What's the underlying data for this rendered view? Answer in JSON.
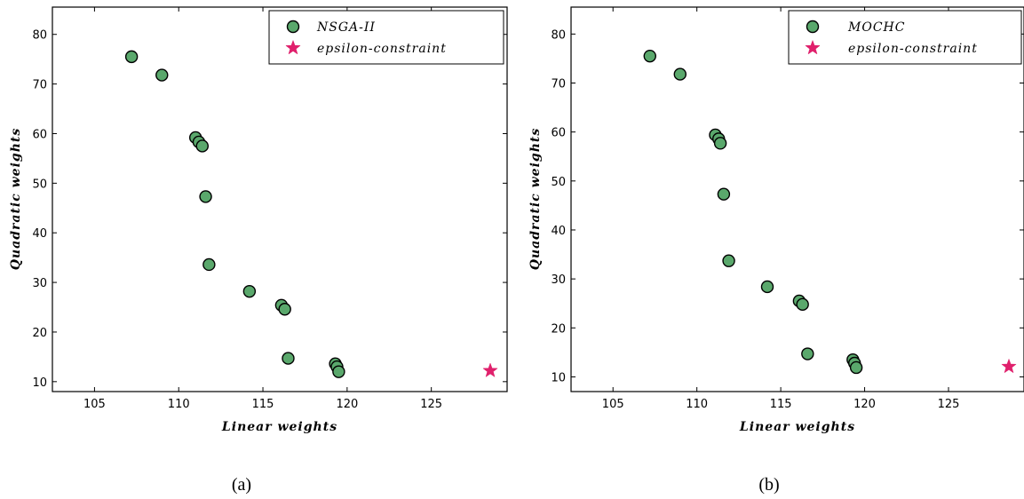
{
  "chart_data": [
    {
      "type": "scatter",
      "xlabel": "Linear weights",
      "ylabel": "Quadratic weights",
      "xlim": [
        102.5,
        129.5
      ],
      "ylim": [
        8,
        85.5
      ],
      "xticks": [
        105,
        110,
        115,
        120,
        125
      ],
      "yticks": [
        10,
        20,
        30,
        40,
        50,
        60,
        70,
        80
      ],
      "legend_position": "top-right",
      "caption": "(a)",
      "series": [
        {
          "name": "NSGA-II",
          "marker": "circle",
          "color": "#5aa86c",
          "x": [
            107.2,
            109.0,
            111.0,
            111.2,
            111.4,
            111.6,
            111.8,
            114.2,
            116.1,
            116.3,
            116.5,
            119.3,
            119.4,
            119.5
          ],
          "y": [
            75.5,
            71.8,
            59.2,
            58.3,
            57.5,
            47.3,
            33.6,
            28.2,
            25.4,
            24.6,
            14.7,
            13.6,
            13.0,
            12.0
          ]
        },
        {
          "name": "epsilon-constraint",
          "marker": "star",
          "color": "#e0206c",
          "x": [
            128.5
          ],
          "y": [
            12.2
          ]
        }
      ]
    },
    {
      "type": "scatter",
      "xlabel": "Linear weights",
      "ylabel": "Quadratic weights",
      "xlim": [
        102.5,
        129.5
      ],
      "ylim": [
        7,
        85.5
      ],
      "xticks": [
        105,
        110,
        115,
        120,
        125
      ],
      "yticks": [
        10,
        20,
        30,
        40,
        50,
        60,
        70,
        80
      ],
      "legend_position": "top-right",
      "caption": "(b)",
      "series": [
        {
          "name": "MOCHC",
          "marker": "circle",
          "color": "#5aa86c",
          "x": [
            107.2,
            109.0,
            111.1,
            111.3,
            111.4,
            111.6,
            111.9,
            114.2,
            116.1,
            116.3,
            116.6,
            119.3,
            119.4,
            119.5
          ],
          "y": [
            75.5,
            71.8,
            59.4,
            58.6,
            57.7,
            47.3,
            33.7,
            28.4,
            25.5,
            24.8,
            14.7,
            13.5,
            12.8,
            11.9
          ]
        },
        {
          "name": "epsilon-constraint",
          "marker": "star",
          "color": "#e0206c",
          "x": [
            128.6
          ],
          "y": [
            12.1
          ]
        }
      ]
    }
  ]
}
